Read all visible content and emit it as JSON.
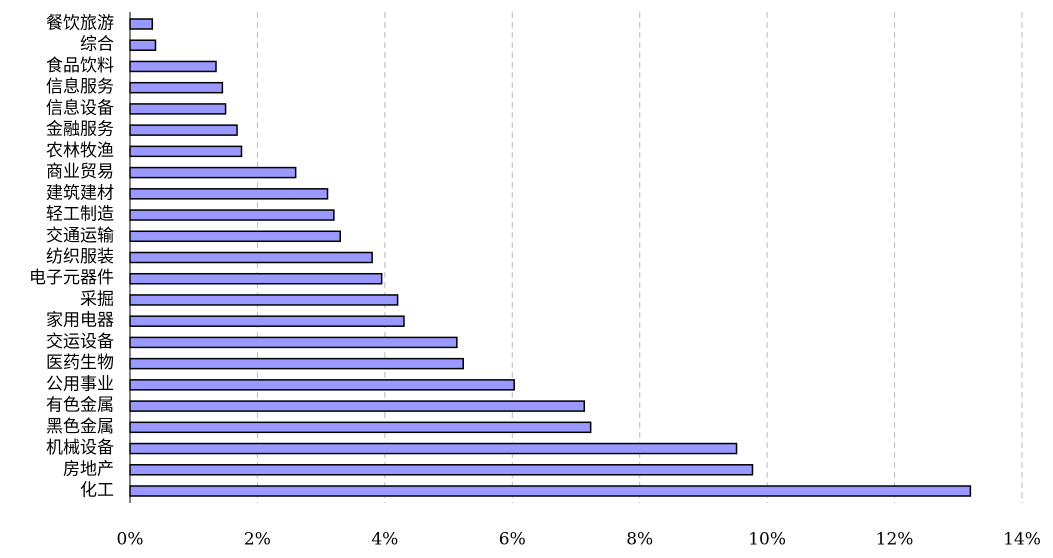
{
  "chart_data": {
    "type": "bar",
    "orientation": "horizontal",
    "categories": [
      "餐饮旅游",
      "综合",
      "食品饮料",
      "信息服务",
      "信息设备",
      "金融服务",
      "农林牧渔",
      "商业贸易",
      "建筑建材",
      "轻工制造",
      "交通运输",
      "纺织服装",
      "电子元器件",
      "采掘",
      "家用电器",
      "交运设备",
      "医药生物",
      "公用事业",
      "有色金属",
      "黑色金属",
      "机械设备",
      "房地产",
      "化工"
    ],
    "values": [
      0.35,
      0.4,
      1.35,
      1.45,
      1.5,
      1.68,
      1.75,
      2.6,
      3.1,
      3.2,
      3.3,
      3.8,
      3.95,
      4.2,
      4.3,
      5.13,
      5.23,
      6.03,
      7.13,
      7.23,
      9.52,
      9.77,
      13.19
    ],
    "color": "#9999ff",
    "xlim": [
      0,
      14
    ],
    "xticks": [
      {
        "value": 0,
        "label": "0%"
      },
      {
        "value": 2,
        "label": "2%"
      },
      {
        "value": 4,
        "label": "4%"
      },
      {
        "value": 6,
        "label": "6%"
      },
      {
        "value": 8,
        "label": "8%"
      },
      {
        "value": 10,
        "label": "10%"
      },
      {
        "value": 12,
        "label": "12%"
      },
      {
        "value": 14,
        "label": "14%"
      }
    ],
    "grid": true
  }
}
